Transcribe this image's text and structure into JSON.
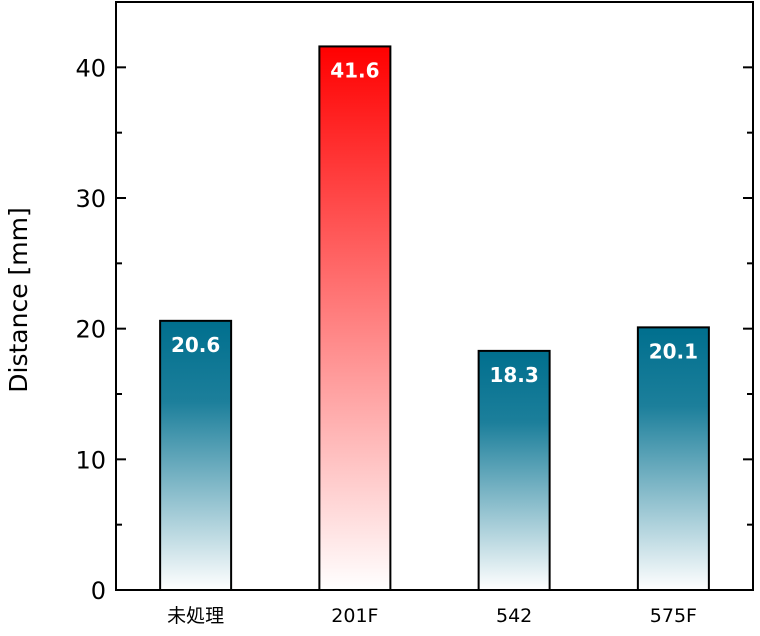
{
  "chart_data": {
    "type": "bar",
    "categories": [
      "未処理",
      "201F",
      "542",
      "575F"
    ],
    "values": [
      20.6,
      41.6,
      18.3,
      20.1
    ],
    "data_labels": [
      "20.6",
      "41.6",
      "18.3",
      "20.1"
    ],
    "title": "",
    "xlabel": "",
    "ylabel": "Distance [mm]",
    "ylim": [
      0,
      45
    ],
    "yticks": [
      0,
      10,
      20,
      30,
      40
    ],
    "ytick_labels": [
      "0",
      "10",
      "20",
      "30",
      "40"
    ],
    "grid": false,
    "colors": {
      "default_bar": "#006f8e",
      "highlight_bar": "#ff0000",
      "highlight_index": 1
    }
  }
}
